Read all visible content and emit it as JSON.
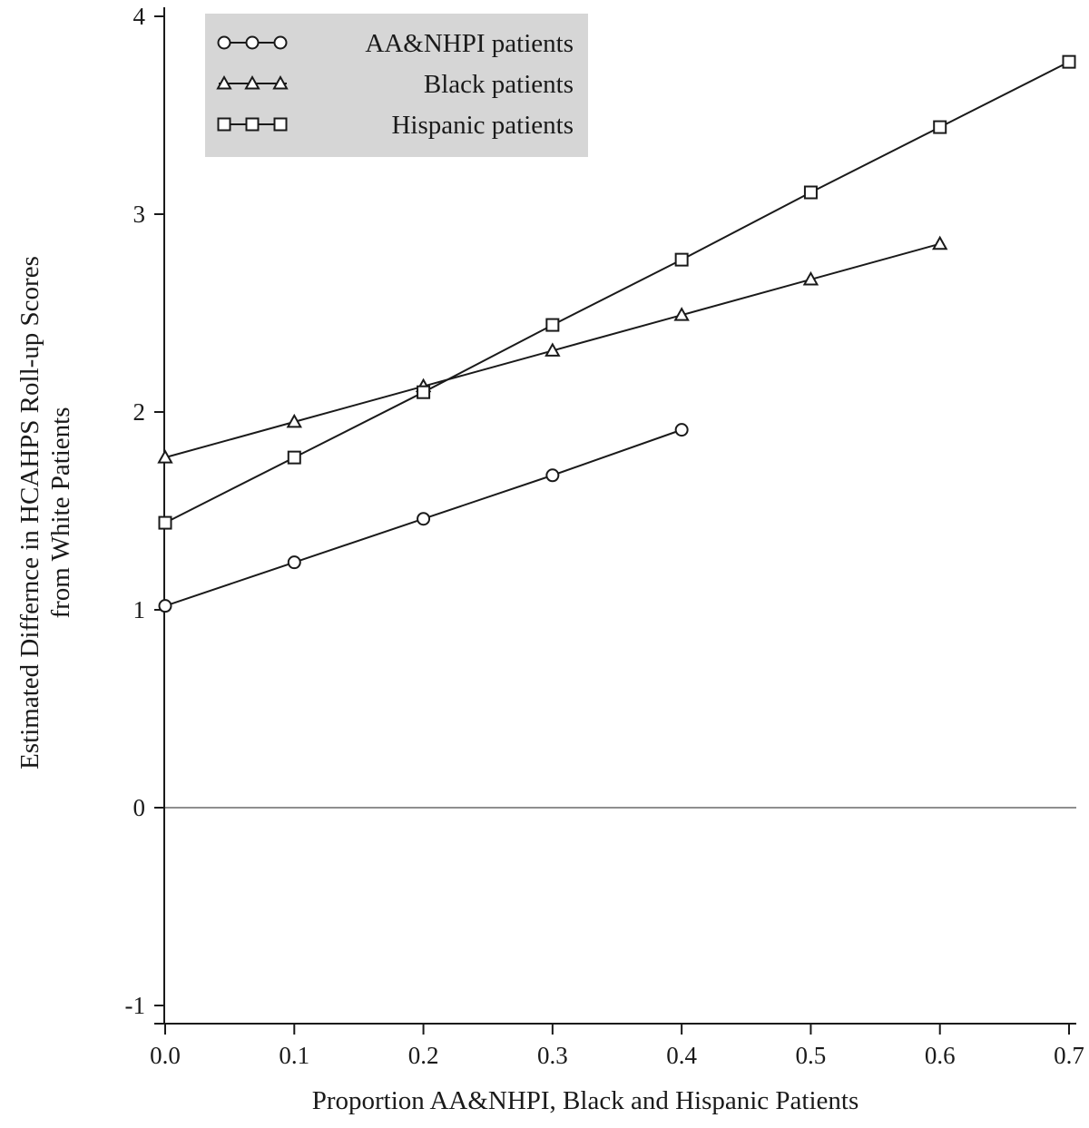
{
  "chart_data": {
    "type": "line",
    "xlabel": "Proportion AA&NHPI, Black and Hispanic Patients",
    "ylabel": [
      "Estimated Differnce in HCAHPS Roll-up Scores",
      "from White Patients"
    ],
    "xlim": [
      0.0,
      0.7
    ],
    "ylim": [
      -1,
      4
    ],
    "x_ticks": [
      "0.0",
      "0.1",
      "0.2",
      "0.3",
      "0.4",
      "0.5",
      "0.6",
      "0.7"
    ],
    "y_ticks": [
      "-1",
      "0",
      "1",
      "2",
      "3",
      "4"
    ],
    "reference_line_y": 0,
    "grid": false,
    "legend_position": "top-left",
    "series": [
      {
        "name": "AA&NHPI patients",
        "marker": "circle",
        "x": [
          0.0,
          0.1,
          0.2,
          0.3,
          0.4
        ],
        "y": [
          1.02,
          1.24,
          1.46,
          1.68,
          1.91
        ]
      },
      {
        "name": "Black patients",
        "marker": "triangle",
        "x": [
          0.0,
          0.1,
          0.2,
          0.3,
          0.4,
          0.5,
          0.6
        ],
        "y": [
          1.77,
          1.95,
          2.13,
          2.31,
          2.49,
          2.67,
          2.85
        ]
      },
      {
        "name": "Hispanic patients",
        "marker": "square",
        "x": [
          0.0,
          0.1,
          0.2,
          0.3,
          0.4,
          0.5,
          0.6,
          0.7
        ],
        "y": [
          1.44,
          1.77,
          2.1,
          2.44,
          2.77,
          3.11,
          3.44,
          3.77
        ]
      }
    ],
    "colors": {
      "line": "#1a1a1a",
      "legend_bg": "#d6d6d6",
      "axis": "#1a1a1a"
    }
  }
}
